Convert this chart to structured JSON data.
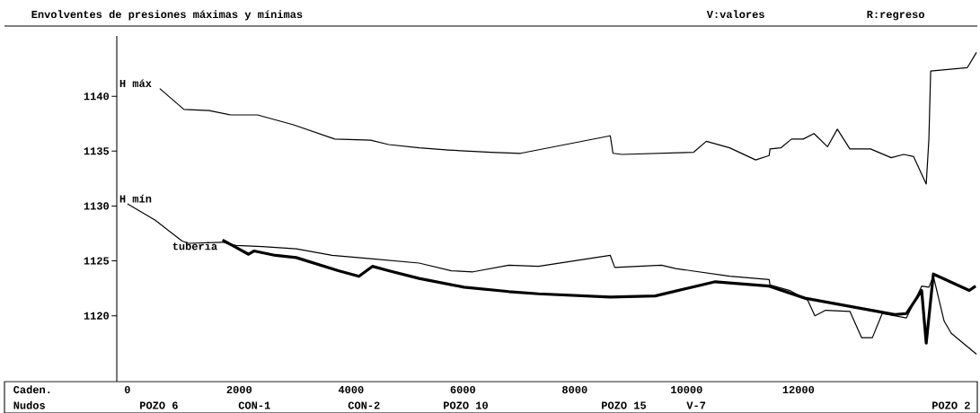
{
  "chart_data": {
    "type": "line",
    "title": "Envolventes de presiones máximas y mínimas",
    "xlabel": "Caden.",
    "xlim": [
      -190,
      15200
    ],
    "xticks": [
      0,
      2000,
      4000,
      6000,
      8000,
      10000,
      12000
    ],
    "ylim": [
      1114,
      1145.5
    ],
    "yticks": [
      1120,
      1125,
      1130,
      1135,
      1140
    ],
    "grid": false,
    "legend": false,
    "marker": "none",
    "line_style": "solid",
    "series": [
      {
        "name": "H máx",
        "color": "#000000",
        "x": [
          578,
          1011,
          1461,
          1846,
          2327,
          2970,
          3708,
          4350,
          4671,
          5217,
          5746,
          6500,
          7030,
          8636,
          8684,
          8844,
          10128,
          10353,
          10770,
          11236,
          11477,
          11493,
          11685,
          11878,
          12087,
          12279,
          12520,
          12697,
          12921,
          13290,
          13660,
          13884,
          14061,
          14286,
          14334,
          14366,
          15020,
          15185
        ],
        "values": [
          1140.7,
          1138.8,
          1138.7,
          1138.3,
          1138.3,
          1137.4,
          1136.1,
          1136.0,
          1135.6,
          1135.3,
          1135.1,
          1134.9,
          1134.8,
          1136.4,
          1134.8,
          1134.7,
          1134.9,
          1135.9,
          1135.3,
          1134.2,
          1134.6,
          1135.2,
          1135.3,
          1136.1,
          1136.1,
          1136.6,
          1135.4,
          1137.0,
          1135.2,
          1135.2,
          1134.4,
          1134.7,
          1134.5,
          1132.0,
          1136.1,
          1142.3,
          1142.6,
          1144.0
        ]
      },
      {
        "name": "H mín",
        "color": "#000000",
        "x": [
          0,
          498,
          979,
          1091,
          1701,
          1942,
          2408,
          3018,
          3660,
          4350,
          5217,
          5795,
          6180,
          6822,
          7352,
          8636,
          8716,
          9551,
          9807,
          10770,
          11477,
          11493,
          11846,
          12167,
          12295,
          12488,
          12921,
          13130,
          13323,
          13499,
          13933,
          14205,
          14334,
          14414,
          14607,
          14735,
          15185
        ],
        "values": [
          1130.2,
          1128.7,
          1126.8,
          1126.6,
          1126.7,
          1126.4,
          1126.3,
          1126.1,
          1125.5,
          1125.2,
          1124.8,
          1124.1,
          1124.0,
          1124.6,
          1124.5,
          1125.5,
          1124.4,
          1124.6,
          1124.3,
          1123.6,
          1123.3,
          1122.8,
          1122.3,
          1121.4,
          1120.0,
          1120.5,
          1120.4,
          1118.0,
          1118.0,
          1120.2,
          1119.8,
          1122.7,
          1122.6,
          1123.6,
          1119.5,
          1118.4,
          1116.5
        ]
      },
      {
        "name": "tuberia",
        "color": "#000000",
        "x": [
          1701,
          2167,
          2263,
          2648,
          3018,
          3772,
          4141,
          4382,
          4671,
          5217,
          6019,
          6822,
          7352,
          8636,
          9438,
          10514,
          11477,
          12119,
          13724,
          13933,
          14205,
          14286,
          14414,
          15056,
          15169
        ],
        "values": [
          1126.9,
          1125.6,
          1125.9,
          1125.5,
          1125.3,
          1124.1,
          1123.6,
          1124.5,
          1124.1,
          1123.4,
          1122.6,
          1122.2,
          1122.0,
          1121.7,
          1121.8,
          1123.1,
          1122.7,
          1121.6,
          1120.1,
          1120.2,
          1122.3,
          1117.5,
          1123.8,
          1122.3,
          1122.7
        ]
      }
    ],
    "annotations": [
      "Nudos",
      "V:valores",
      "R:regreso",
      "POZO 6",
      "CON-1",
      "CON-2",
      "POZO 10",
      "POZO 15",
      "V-7",
      "POZO 2"
    ]
  }
}
